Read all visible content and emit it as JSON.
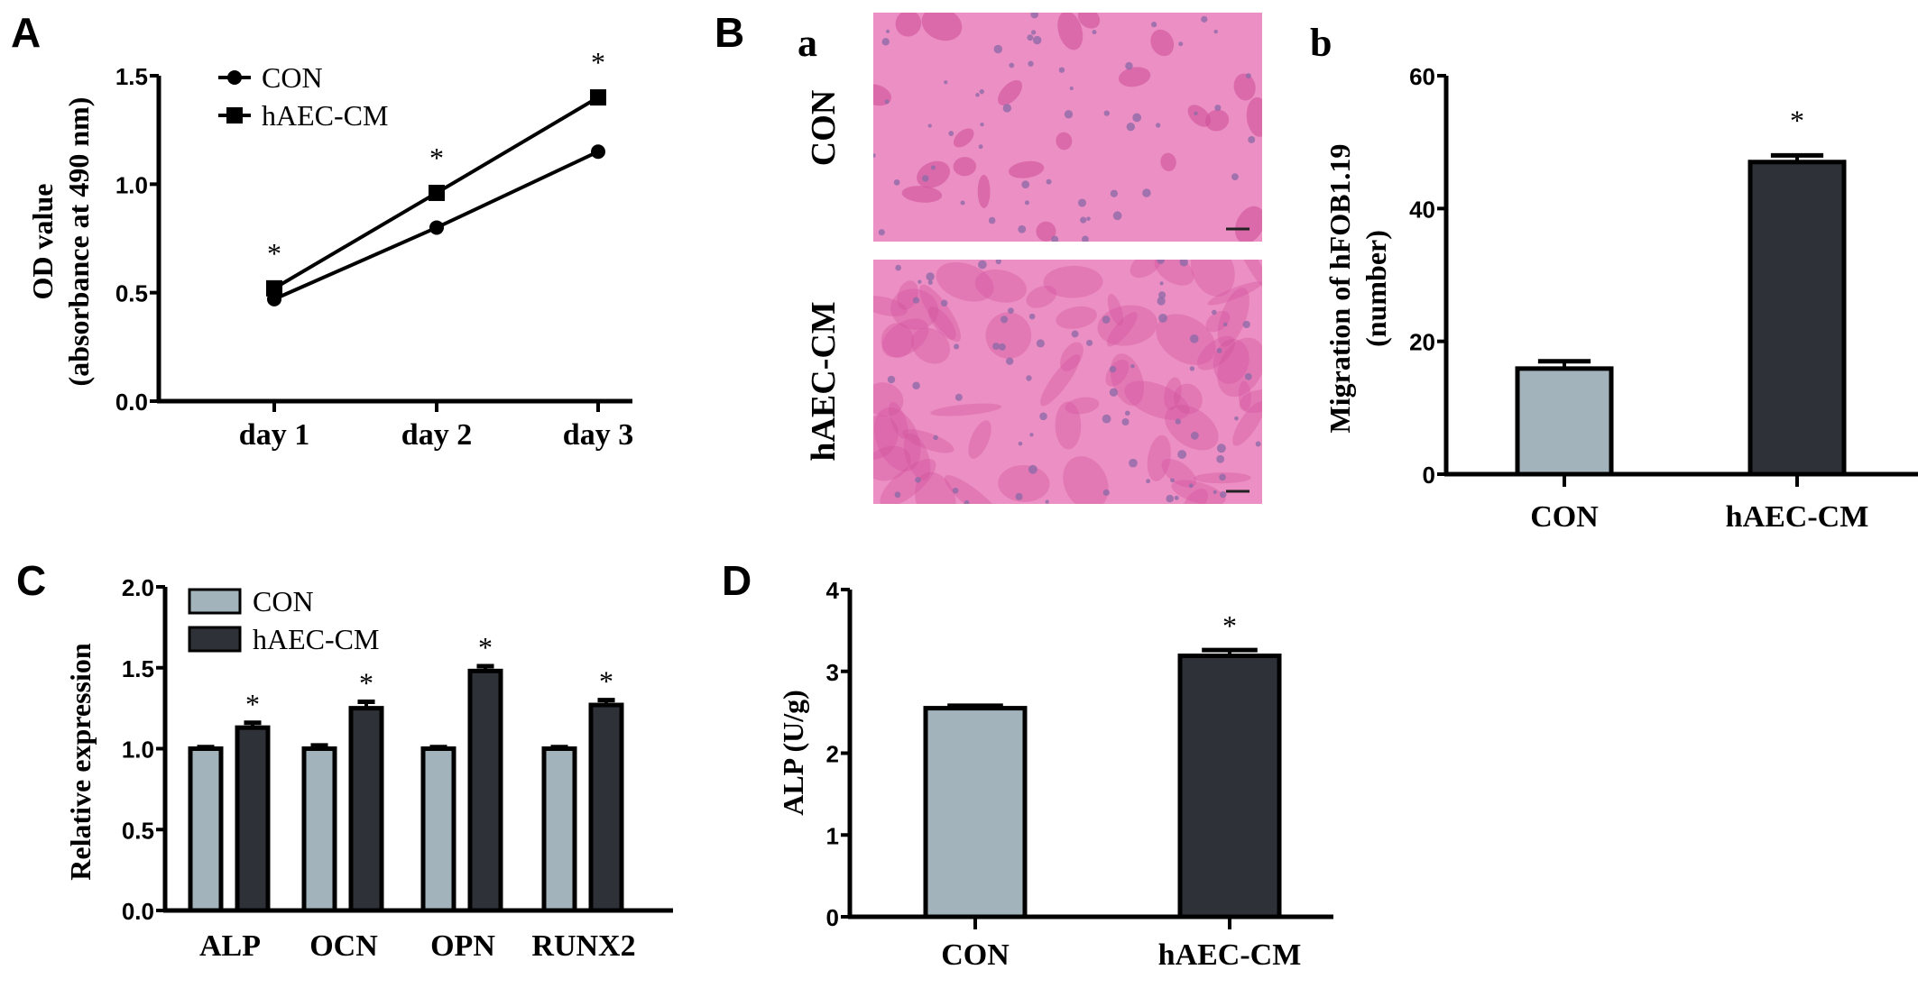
{
  "panels": {
    "A": "A",
    "B": "B",
    "Ba": "a",
    "Bb": "b",
    "C": "C",
    "D": "D"
  },
  "micrographs": {
    "row_labels": [
      "CON",
      "hAEC-CM"
    ],
    "background_color": "#ec8fc4",
    "cell_color": "#d0519b",
    "nucleus_color": "#8e6aa8"
  },
  "colors": {
    "con": "#a3b3bc",
    "haec": "#2e3238",
    "line": "#000000"
  },
  "chart_data": [
    {
      "id": "A",
      "type": "line",
      "categories": [
        "day 1",
        "day 2",
        "day 3"
      ],
      "ylabel": [
        "OD value",
        "(absorbance at 490 nm)"
      ],
      "ylim": [
        0,
        1.5
      ],
      "yticks": [
        "0.0",
        "0.5",
        "1.0",
        "1.5"
      ],
      "ytick_values": [
        0,
        0.5,
        1.0,
        1.5
      ],
      "series": [
        {
          "name": "CON",
          "marker": "circle",
          "values": [
            0.47,
            0.8,
            1.15
          ]
        },
        {
          "name": "hAEC-CM",
          "marker": "square",
          "values": [
            0.52,
            0.96,
            1.4
          ]
        }
      ],
      "annotations": [
        "*",
        "*",
        "*"
      ],
      "legend": "top-left"
    },
    {
      "id": "Bb",
      "type": "bar",
      "categories": [
        "CON",
        "hAEC-CM"
      ],
      "values": [
        15.9,
        47.0
      ],
      "errors": [
        1.1,
        1.0
      ],
      "ylabel": [
        "Migration of hFOB1.19",
        "(number)"
      ],
      "ylim": [
        0,
        60
      ],
      "yticks": [
        "0",
        "20",
        "40",
        "60"
      ],
      "ytick_values": [
        0,
        20,
        40,
        60
      ],
      "annotations": [
        "",
        "*"
      ]
    },
    {
      "id": "C",
      "type": "bar",
      "categories": [
        "ALP",
        "OCN",
        "OPN",
        "RUNX2"
      ],
      "series": [
        {
          "name": "CON",
          "values": [
            1.0,
            1.0,
            1.0,
            1.0
          ],
          "errors": [
            0.01,
            0.02,
            0.01,
            0.01
          ]
        },
        {
          "name": "hAEC-CM",
          "values": [
            1.13,
            1.25,
            1.48,
            1.27
          ],
          "errors": [
            0.03,
            0.04,
            0.03,
            0.03
          ]
        }
      ],
      "ylabel": "Relative expression",
      "ylim": [
        0,
        2.0
      ],
      "yticks": [
        "0.0",
        "0.5",
        "1.0",
        "1.5",
        "2.0"
      ],
      "ytick_values": [
        0,
        0.5,
        1.0,
        1.5,
        2.0
      ],
      "annotations": [
        "*",
        "*",
        "*",
        "*"
      ],
      "legend": "top-left"
    },
    {
      "id": "D",
      "type": "bar",
      "categories": [
        "CON",
        "hAEC-CM"
      ],
      "values": [
        2.55,
        3.19
      ],
      "errors": [
        0.03,
        0.07
      ],
      "ylabel": "ALP (U/g)",
      "ylim": [
        0,
        4
      ],
      "yticks": [
        "0",
        "1",
        "2",
        "3",
        "4"
      ],
      "ytick_values": [
        0,
        1,
        2,
        3,
        4
      ],
      "annotations": [
        "",
        "*"
      ]
    }
  ]
}
